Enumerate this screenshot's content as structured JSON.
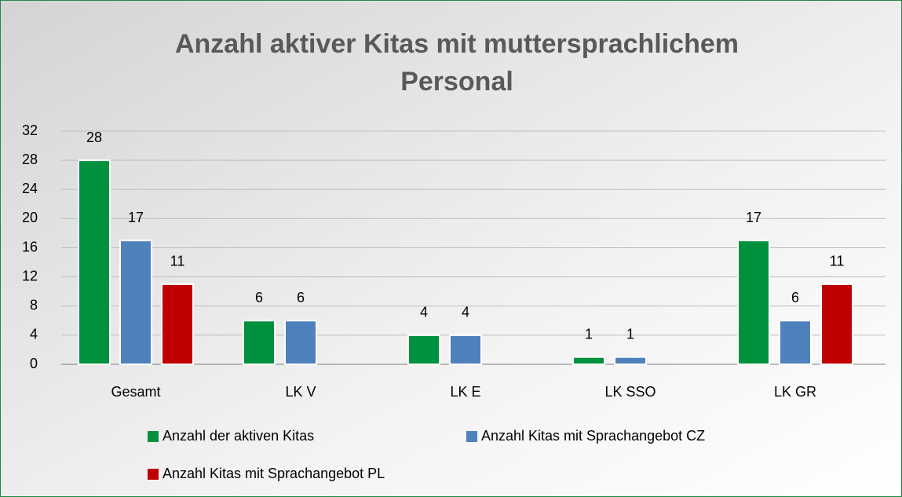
{
  "chart_data": {
    "type": "bar",
    "title": [
      "Anzahl aktiver Kitas mit muttersprachlichem",
      "Personal"
    ],
    "categories": [
      "Gesamt",
      "LK V",
      "LK E",
      "LK SSO",
      "LK GR"
    ],
    "series": [
      {
        "name": "Anzahl der aktiven Kitas",
        "color": "#00913f",
        "values": [
          28,
          6,
          4,
          1,
          17
        ]
      },
      {
        "name": "Anzahl Kitas mit Sprachangebot CZ",
        "color": "#4f81bd",
        "values": [
          17,
          6,
          4,
          1,
          6
        ]
      },
      {
        "name": "Anzahl Kitas mit Sprachangebot PL",
        "color": "#c00000",
        "values": [
          11,
          null,
          null,
          null,
          11
        ]
      }
    ],
    "ylim": [
      0,
      32
    ],
    "yticks": [
      0,
      4,
      8,
      12,
      16,
      20,
      24,
      28,
      32
    ],
    "grid": true
  }
}
